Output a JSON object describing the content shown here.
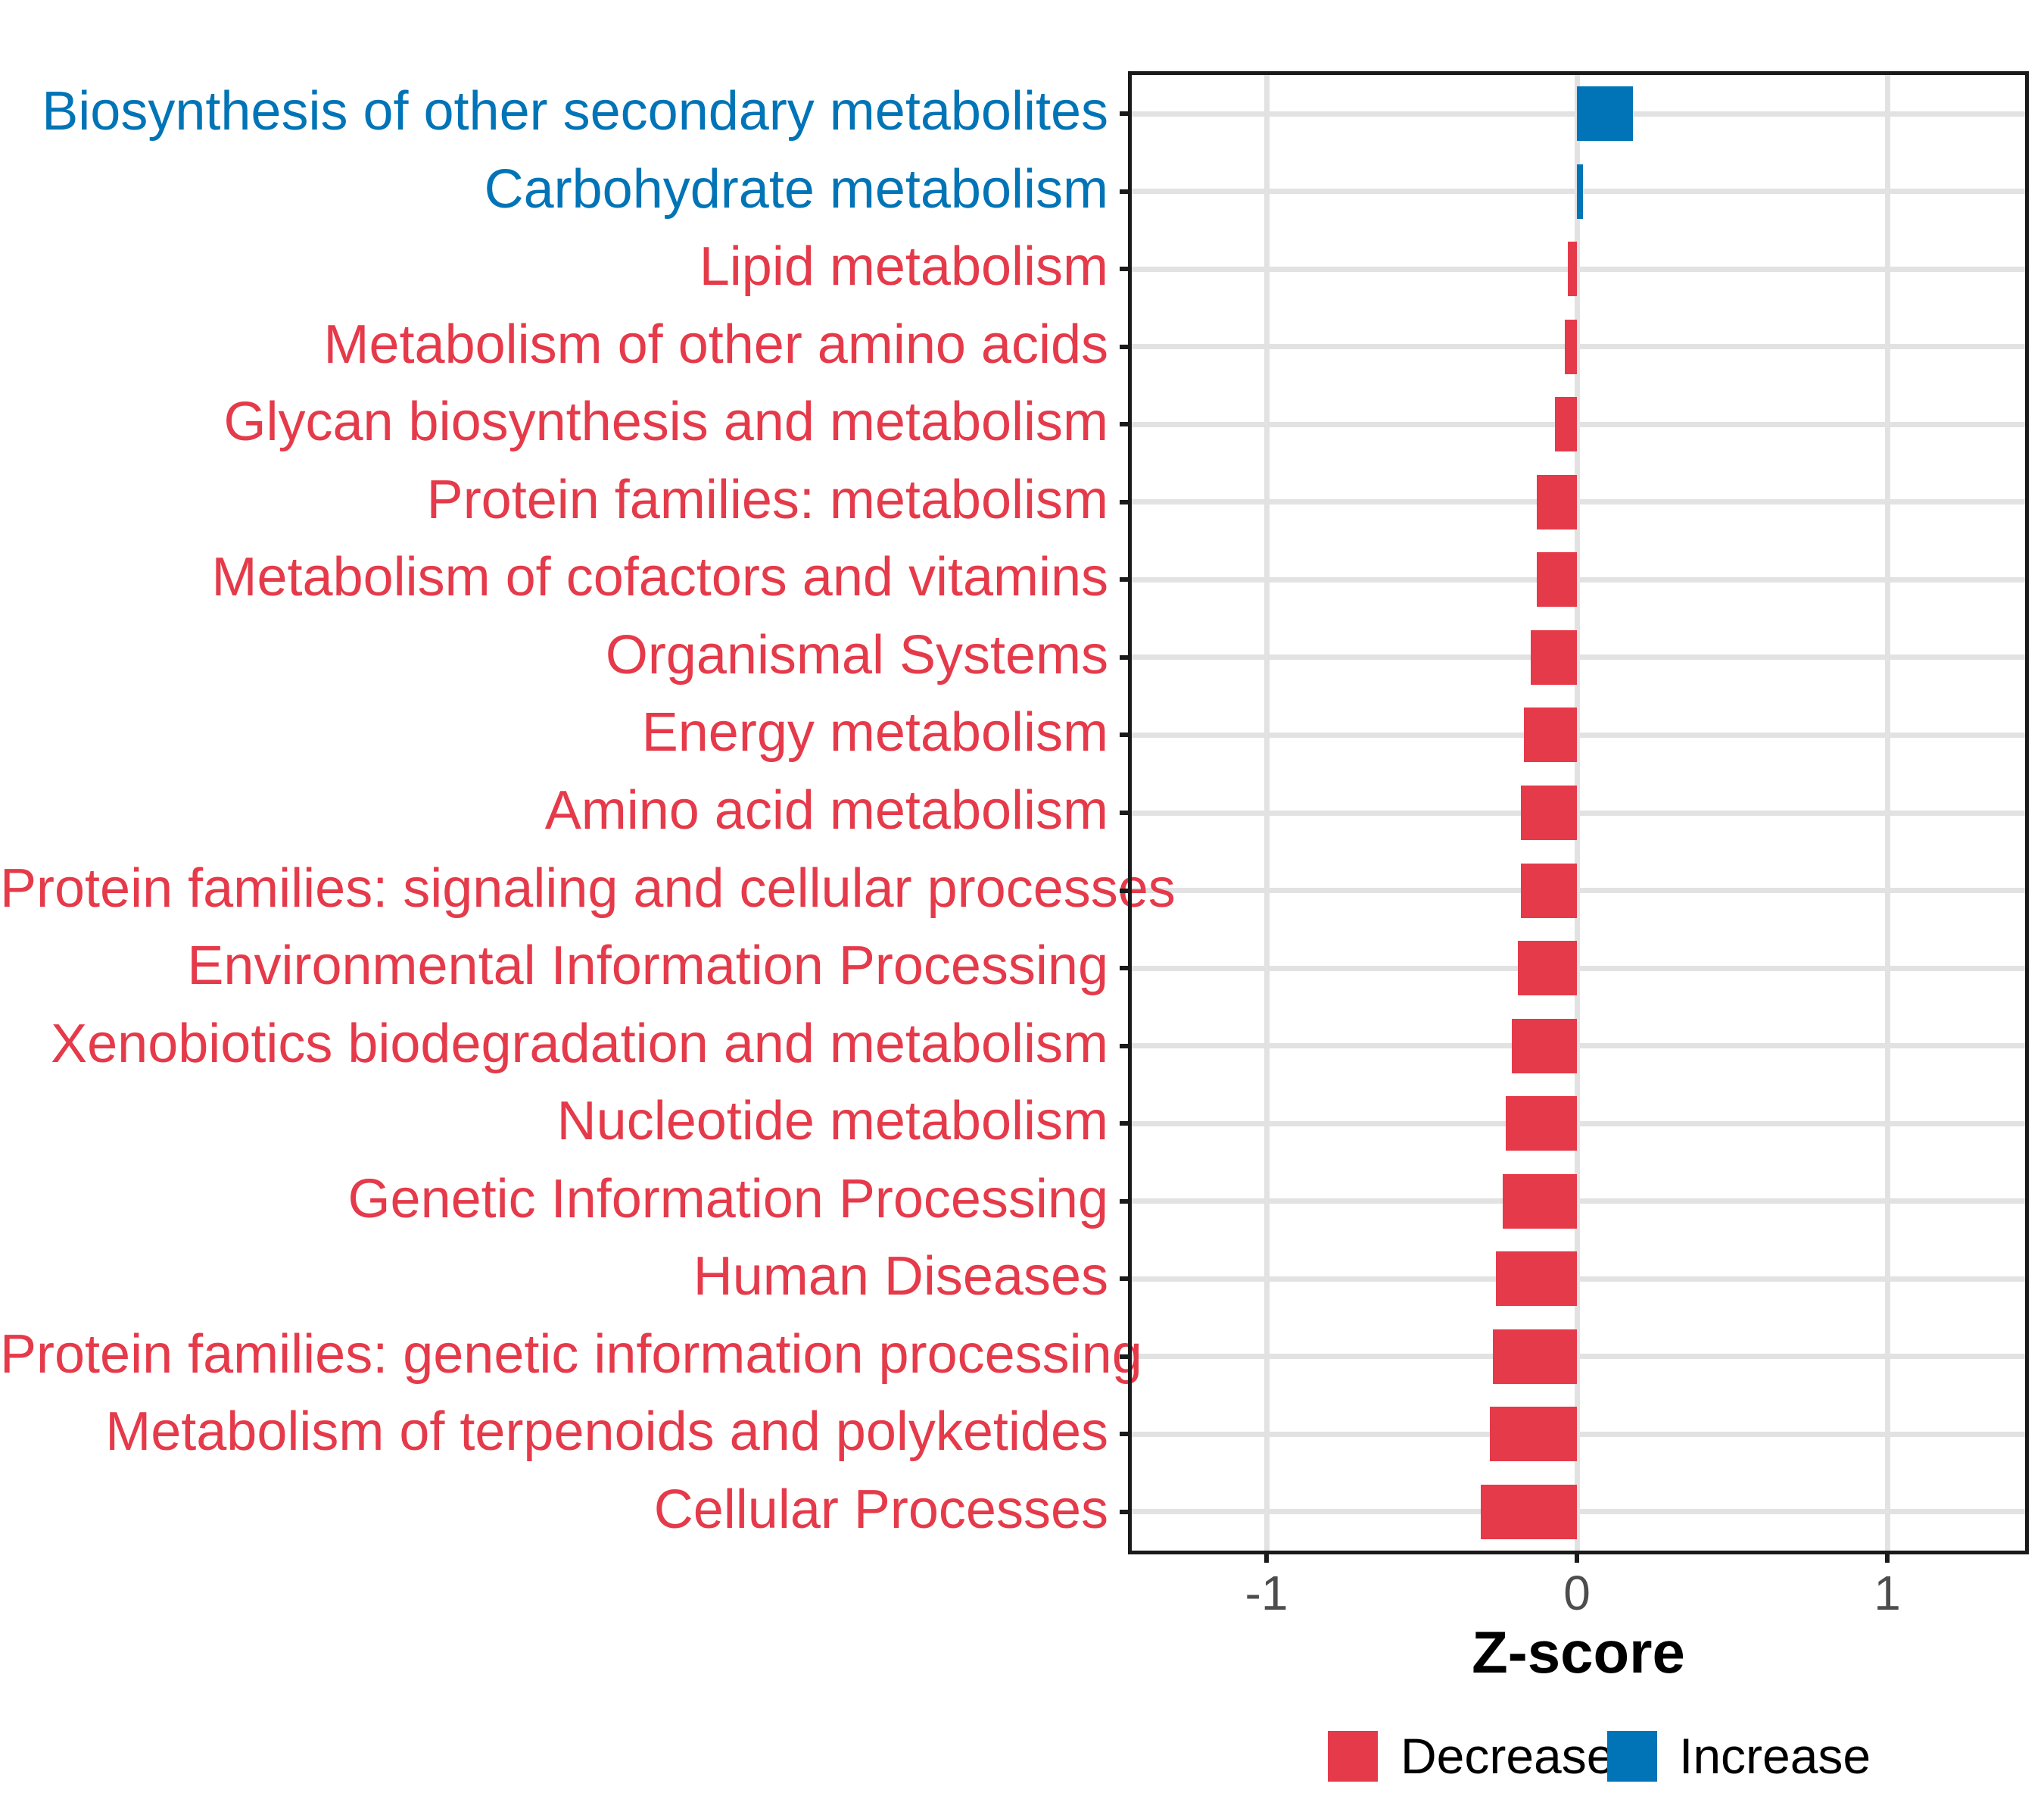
{
  "chart_data": {
    "type": "bar",
    "orientation": "horizontal",
    "title": "",
    "xlabel": "Z-score",
    "ylabel": "",
    "xlim": [
      -1.44,
      1.45
    ],
    "x_ticks": [
      -1,
      0,
      1
    ],
    "x_tick_labels": [
      "-1",
      "0",
      "1"
    ],
    "grid": "major-only",
    "legend_position": "bottom",
    "categories": [
      "Biosynthesis of other secondary metabolites",
      "Carbohydrate metabolism",
      "Lipid metabolism",
      "Metabolism of other amino acids",
      "Glycan biosynthesis and metabolism",
      "Protein families: metabolism",
      "Metabolism of cofactors and vitamins",
      "Organismal Systems",
      "Energy metabolism",
      "Amino acid metabolism",
      "Protein families: signaling and cellular processes",
      "Environmental Information Processing",
      "Xenobiotics biodegradation and metabolism",
      "Nucleotide metabolism",
      "Genetic Information Processing",
      "Human Diseases",
      "Protein families: genetic information processing",
      "Metabolism of terpenoids and polyketides",
      "Cellular Processes"
    ],
    "values": [
      0.18,
      0.02,
      -0.03,
      -0.04,
      -0.07,
      -0.13,
      -0.13,
      -0.15,
      -0.17,
      -0.18,
      -0.18,
      -0.19,
      -0.21,
      -0.23,
      -0.24,
      -0.26,
      -0.27,
      -0.28,
      -0.31
    ],
    "directions": [
      "Increase",
      "Increase",
      "Decrease",
      "Decrease",
      "Decrease",
      "Decrease",
      "Decrease",
      "Decrease",
      "Decrease",
      "Decrease",
      "Decrease",
      "Decrease",
      "Decrease",
      "Decrease",
      "Decrease",
      "Decrease",
      "Decrease",
      "Decrease",
      "Decrease"
    ],
    "series_colors": {
      "Decrease": "#e53a4a",
      "Increase": "#0074b6"
    }
  },
  "axis": {
    "tick_color": "#4d4d4d",
    "line_color": "#1a1a1a",
    "grid_color": "#e2e2e2"
  },
  "legend": {
    "items": [
      {
        "label": "Decrease",
        "color": "#e53a4a"
      },
      {
        "label": "Increase",
        "color": "#0074b6"
      }
    ]
  }
}
